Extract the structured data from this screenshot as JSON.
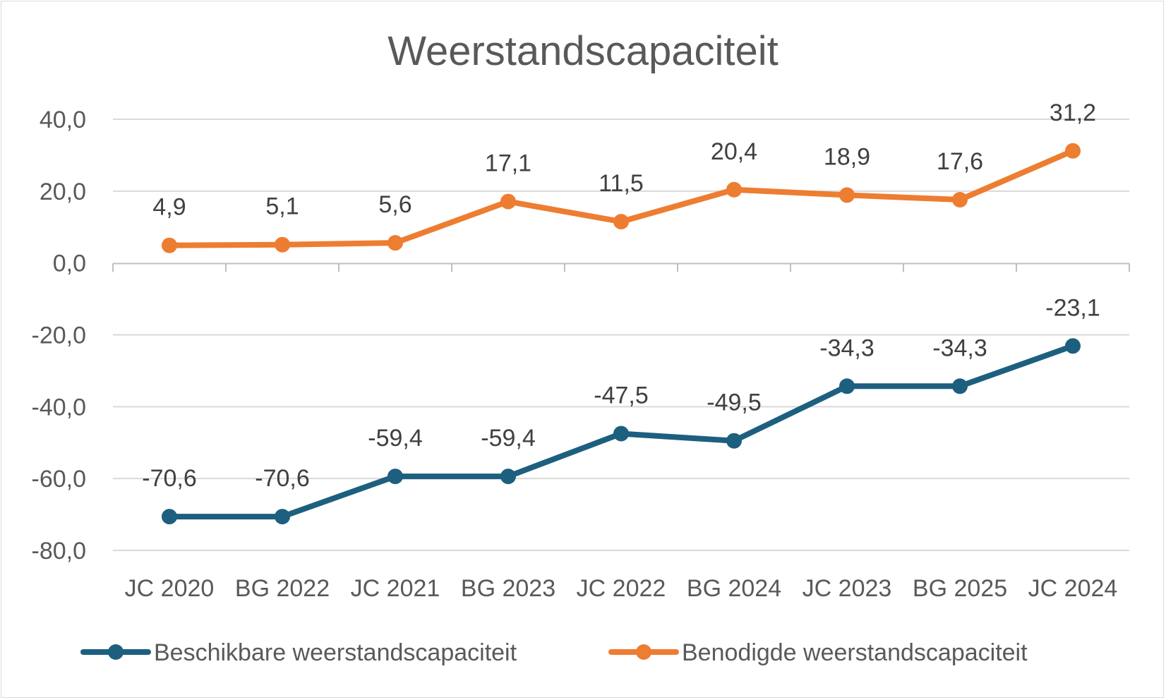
{
  "chart_data": {
    "type": "line",
    "title": "Weerstandscapaciteit",
    "categories": [
      "JC 2020",
      "BG 2022",
      "JC 2021",
      "BG 2023",
      "JC 2022",
      "BG 2024",
      "JC 2023",
      "BG 2025",
      "JC 2024"
    ],
    "ylim": [
      -80,
      40
    ],
    "yticks": [
      "40,0",
      "20,0",
      "0,0",
      "-20,0",
      "-40,0",
      "-60,0",
      "-80,0"
    ],
    "ytick_values": [
      40,
      20,
      0,
      -20,
      -40,
      -60,
      -80
    ],
    "grid": true,
    "legend_position": "bottom",
    "series": [
      {
        "name": "Beschikbare weerstandscapaciteit",
        "color": "#1d5f7f",
        "values": [
          -70.6,
          -70.6,
          -59.4,
          -59.4,
          -47.5,
          -49.5,
          -34.3,
          -34.3,
          -23.1
        ],
        "labels": [
          "-70,6",
          "-70,6",
          "-59,4",
          "-59,4",
          "-47,5",
          "-49,5",
          "-34,3",
          "-34,3",
          "-23,1"
        ]
      },
      {
        "name": "Benodigde weerstandscapaciteit",
        "color": "#ed7d31",
        "values": [
          4.9,
          5.1,
          5.6,
          17.1,
          11.5,
          20.4,
          18.9,
          17.6,
          31.2
        ],
        "labels": [
          "4,9",
          "5,1",
          "5,6",
          "17,1",
          "11,5",
          "20,4",
          "18,9",
          "17,6",
          "31,2"
        ]
      }
    ]
  }
}
